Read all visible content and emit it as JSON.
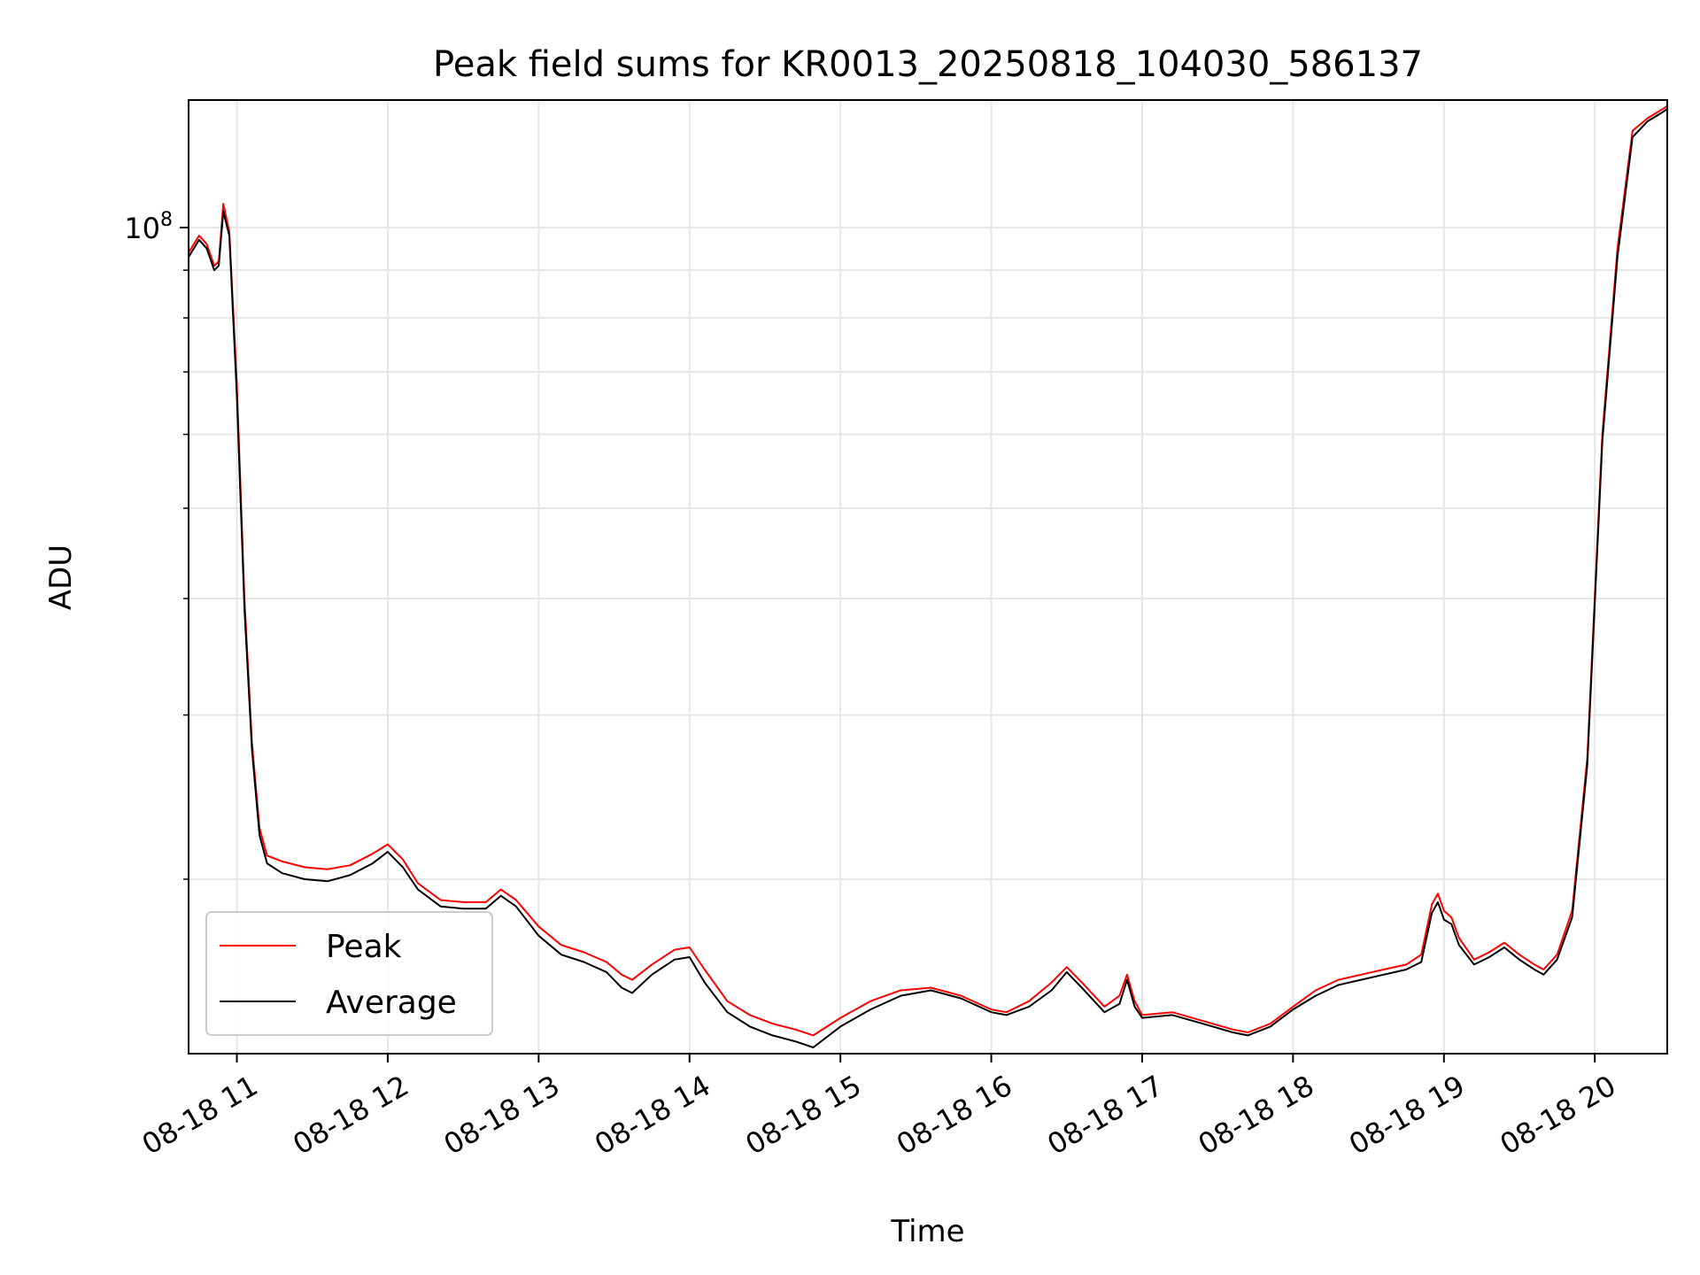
{
  "chart_data": {
    "type": "line",
    "title": "Peak field sums for KR0013_20250818_104030_586137",
    "xlabel": "Time",
    "ylabel": "ADU",
    "yscale": "log",
    "x_unit": "hours (08-18)",
    "xlim": [
      10.68,
      20.48
    ],
    "ylim": [
      13000000,
      137000000
    ],
    "grid": true,
    "legend_position": "lower-left",
    "x_ticks": [
      {
        "value": 11,
        "label": "08-18 11"
      },
      {
        "value": 12,
        "label": "08-18 12"
      },
      {
        "value": 13,
        "label": "08-18 13"
      },
      {
        "value": 14,
        "label": "08-18 14"
      },
      {
        "value": 15,
        "label": "08-18 15"
      },
      {
        "value": 16,
        "label": "08-18 16"
      },
      {
        "value": 17,
        "label": "08-18 17"
      },
      {
        "value": 18,
        "label": "08-18 18"
      },
      {
        "value": 19,
        "label": "08-18 19"
      },
      {
        "value": 20,
        "label": "08-18 20"
      }
    ],
    "y_major_ticks": [
      {
        "value": 100000000,
        "base": "10",
        "exp": "8"
      }
    ],
    "y_minor_ticks": [
      20000000,
      30000000,
      40000000,
      50000000,
      60000000,
      70000000,
      80000000,
      90000000
    ],
    "x": [
      10.68,
      10.75,
      10.8,
      10.85,
      10.88,
      10.91,
      10.95,
      11.0,
      11.05,
      11.1,
      11.15,
      11.2,
      11.3,
      11.45,
      11.6,
      11.75,
      11.9,
      12.0,
      12.1,
      12.2,
      12.35,
      12.5,
      12.65,
      12.75,
      12.85,
      13.0,
      13.15,
      13.3,
      13.45,
      13.55,
      13.62,
      13.75,
      13.9,
      14.0,
      14.1,
      14.25,
      14.4,
      14.55,
      14.7,
      14.82,
      15.0,
      15.2,
      15.4,
      15.6,
      15.8,
      16.0,
      16.1,
      16.25,
      16.4,
      16.5,
      16.6,
      16.75,
      16.85,
      16.9,
      16.95,
      17.0,
      17.2,
      17.4,
      17.6,
      17.7,
      17.85,
      18.0,
      18.15,
      18.3,
      18.45,
      18.6,
      18.75,
      18.85,
      18.92,
      18.96,
      19.0,
      19.05,
      19.1,
      19.2,
      19.3,
      19.4,
      19.5,
      19.6,
      19.66,
      19.75,
      19.85,
      19.95,
      20.05,
      20.15,
      20.25,
      20.35,
      20.45,
      20.48
    ],
    "series": [
      {
        "name": "Peak",
        "color": "#ff0000",
        "values": [
          94000000,
          98000000,
          96000000,
          91000000,
          92000000,
          106000000,
          99000000,
          68000000,
          40000000,
          28000000,
          22700000,
          21200000,
          20900000,
          20600000,
          20500000,
          20700000,
          21300000,
          21800000,
          21000000,
          19800000,
          19000000,
          18900000,
          18900000,
          19500000,
          19000000,
          17800000,
          17000000,
          16700000,
          16300000,
          15800000,
          15600000,
          16200000,
          16800000,
          16900000,
          16000000,
          14800000,
          14300000,
          14000000,
          13800000,
          13600000,
          14200000,
          14800000,
          15200000,
          15300000,
          15000000,
          14500000,
          14400000,
          14800000,
          15500000,
          16100000,
          15500000,
          14600000,
          15000000,
          15800000,
          14800000,
          14300000,
          14400000,
          14100000,
          13800000,
          13700000,
          14000000,
          14600000,
          15200000,
          15600000,
          15800000,
          16000000,
          16200000,
          16600000,
          18800000,
          19300000,
          18500000,
          18200000,
          17300000,
          16400000,
          16700000,
          17100000,
          16600000,
          16200000,
          16000000,
          16600000,
          18500000,
          27000000,
          60000000,
          95000000,
          127000000,
          131000000,
          134000000,
          135000000
        ]
      },
      {
        "name": "Average",
        "color": "#000000",
        "values": [
          93000000,
          97000000,
          95000000,
          90000000,
          91000000,
          104000000,
          98000000,
          66000000,
          39000000,
          27500000,
          22300000,
          20800000,
          20300000,
          20000000,
          19900000,
          20200000,
          20800000,
          21400000,
          20600000,
          19500000,
          18700000,
          18600000,
          18600000,
          19200000,
          18700000,
          17400000,
          16600000,
          16300000,
          15900000,
          15300000,
          15100000,
          15800000,
          16400000,
          16500000,
          15500000,
          14400000,
          13900000,
          13600000,
          13400000,
          13200000,
          13900000,
          14500000,
          15000000,
          15200000,
          14900000,
          14400000,
          14300000,
          14600000,
          15200000,
          15900000,
          15300000,
          14400000,
          14700000,
          15600000,
          14600000,
          14200000,
          14300000,
          14000000,
          13700000,
          13600000,
          13900000,
          14500000,
          15000000,
          15400000,
          15600000,
          15800000,
          16000000,
          16300000,
          18400000,
          18900000,
          18100000,
          17900000,
          17000000,
          16200000,
          16500000,
          16900000,
          16400000,
          16000000,
          15800000,
          16400000,
          18200000,
          26500000,
          59000000,
          93000000,
          125000000,
          130000000,
          133000000,
          134000000
        ]
      }
    ]
  }
}
